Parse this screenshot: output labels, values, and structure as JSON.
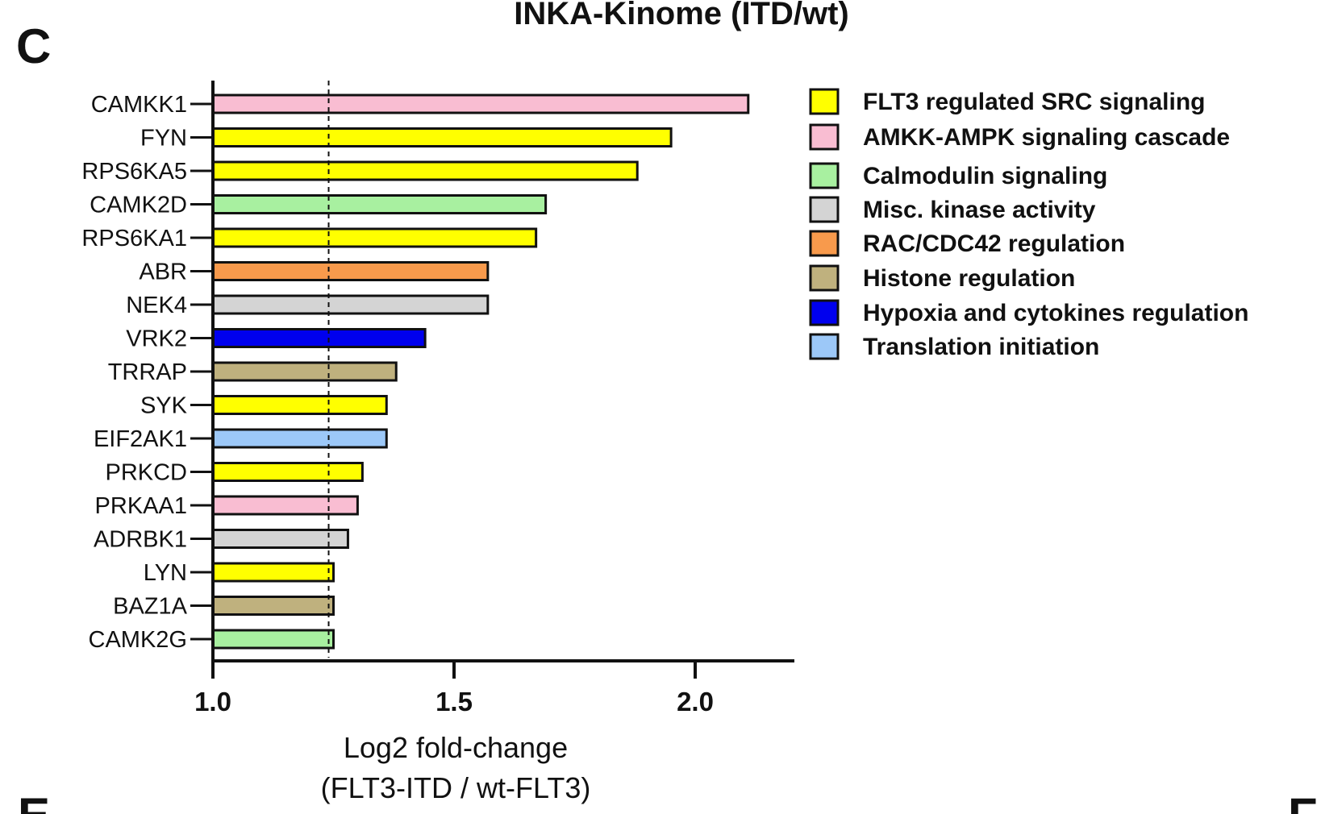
{
  "panel_label": "C",
  "panel_label_bottom_left": "E",
  "panel_label_bottom_right": "F",
  "chart_data": {
    "type": "bar",
    "orientation": "horizontal",
    "title": "INKA-Kinome (ITD/wt)",
    "xlabel": "Log2 fold-change",
    "xlabel_line2": "(FLT3-ITD / wt-FLT3)",
    "ylabel": "",
    "xlim": [
      1.0,
      2.2
    ],
    "xticks": [
      "1.0",
      "1.5",
      "2.0"
    ],
    "xtick_values": [
      1.0,
      1.5,
      2.0
    ],
    "threshold": 1.24,
    "legend_placement": "right",
    "categories": [
      "CAMKK1",
      "FYN",
      "RPS6KA5",
      "CAMK2D",
      "RPS6KA1",
      "ABR",
      "NEK4",
      "VRK2",
      "TRRAP",
      "SYK",
      "EIF2AK1",
      "PRKCD",
      "PRKAA1",
      "ADRBK1",
      "LYN",
      "BAZ1A",
      "CAMK2G"
    ],
    "values": [
      2.11,
      1.95,
      1.88,
      1.69,
      1.67,
      1.57,
      1.57,
      1.44,
      1.38,
      1.36,
      1.36,
      1.31,
      1.3,
      1.28,
      1.25,
      1.25,
      1.25
    ],
    "groups": [
      1,
      0,
      0,
      2,
      0,
      4,
      3,
      6,
      5,
      0,
      7,
      0,
      1,
      3,
      0,
      5,
      2
    ],
    "legend": [
      {
        "label": "FLT3 regulated SRC signaling",
        "color": "#ffff00"
      },
      {
        "label": "AMKK-AMPK signaling cascade",
        "color": "#f9bdd2"
      },
      {
        "label": "Calmodulin signaling",
        "color": "#a8f0a0"
      },
      {
        "label": "Misc. kinase activity",
        "color": "#d4d4d4"
      },
      {
        "label": "RAC/CDC42 regulation",
        "color": "#f89a4c"
      },
      {
        "label": "Histone regulation",
        "color": "#bfb17e"
      },
      {
        "label": "Hypoxia and cytokines regulation",
        "color": "#0000ee"
      },
      {
        "label": "Translation initiation",
        "color": "#9cc8f8"
      }
    ]
  }
}
